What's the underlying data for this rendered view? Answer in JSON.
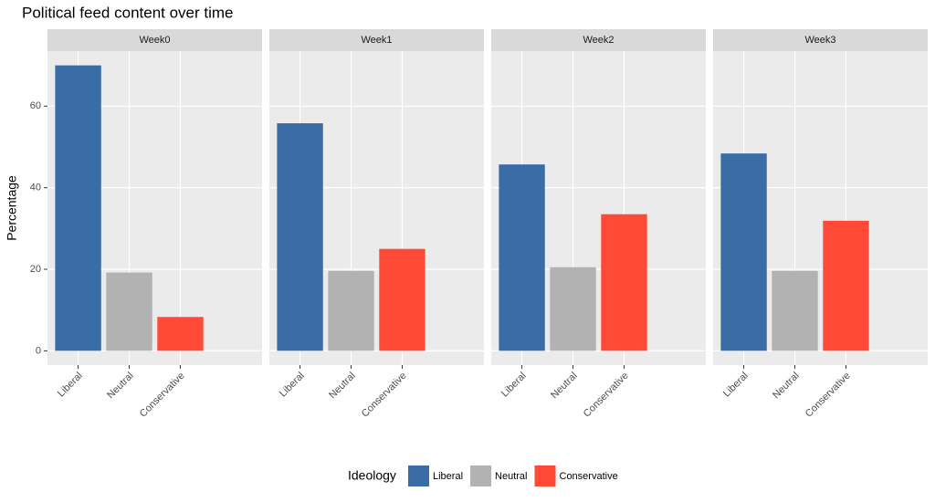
{
  "chart_data": {
    "type": "bar",
    "title": "Political feed content over time",
    "y_label": "Percentage",
    "legend_title": "Ideology",
    "categories": [
      "Liberal",
      "Neutral",
      "Conservative"
    ],
    "colors": [
      "#3a6ca5",
      "#b2b2b2",
      "#fe4a36"
    ],
    "facets": [
      {
        "name": "Week0",
        "values": [
          70.0,
          19.2,
          8.3
        ]
      },
      {
        "name": "Week1",
        "values": [
          55.8,
          19.6,
          25.0
        ]
      },
      {
        "name": "Week2",
        "values": [
          45.7,
          20.5,
          33.5
        ]
      },
      {
        "name": "Week3",
        "values": [
          48.4,
          19.6,
          31.9
        ]
      }
    ],
    "ylim": [
      -3.5,
      73.5
    ],
    "yticks": [
      0,
      20,
      40,
      60
    ],
    "grid": true,
    "legend_position": "bottom"
  }
}
